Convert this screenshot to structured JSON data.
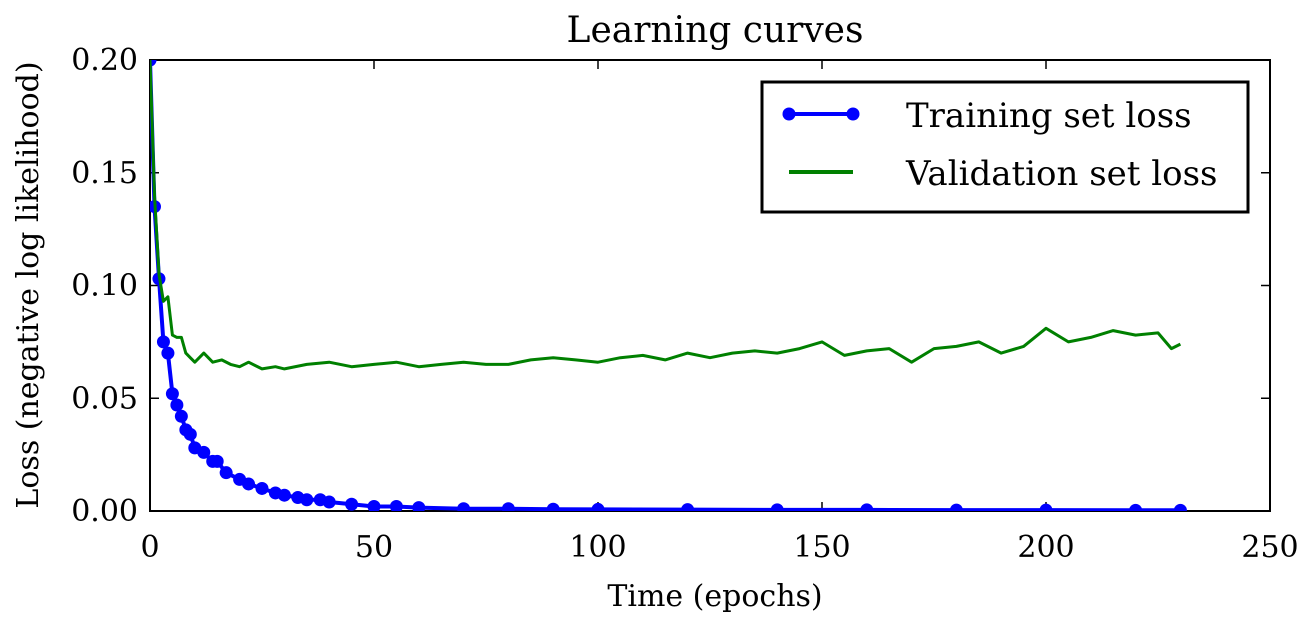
{
  "chart_data": {
    "type": "line",
    "title": "Learning curves",
    "xlabel": "Time (epochs)",
    "ylabel": "Loss (negative log likelihood)",
    "xlim": [
      0,
      250
    ],
    "ylim": [
      0.0,
      0.2
    ],
    "xticks": [
      0,
      50,
      100,
      150,
      200,
      250
    ],
    "xtick_labels": [
      "0",
      "50",
      "100",
      "150",
      "200",
      "250"
    ],
    "yticks": [
      0.0,
      0.05,
      0.1,
      0.15,
      0.2
    ],
    "ytick_labels": [
      "0.00",
      "0.05",
      "0.10",
      "0.15",
      "0.20"
    ],
    "grid": false,
    "legend_position": "top-right",
    "series": [
      {
        "name": "Training set loss",
        "color": "#0000ff",
        "marker": "circle",
        "x": [
          0,
          1,
          2,
          3,
          4,
          5,
          6,
          7,
          8,
          9,
          10,
          12,
          14,
          15,
          17,
          20,
          22,
          25,
          28,
          30,
          33,
          35,
          38,
          40,
          45,
          50,
          55,
          60,
          70,
          80,
          90,
          100,
          120,
          140,
          160,
          180,
          200,
          220,
          230
        ],
        "y": [
          0.2,
          0.135,
          0.103,
          0.075,
          0.07,
          0.052,
          0.047,
          0.042,
          0.036,
          0.034,
          0.028,
          0.026,
          0.022,
          0.022,
          0.017,
          0.014,
          0.012,
          0.01,
          0.008,
          0.007,
          0.006,
          0.005,
          0.005,
          0.004,
          0.003,
          0.002,
          0.002,
          0.0015,
          0.001,
          0.001,
          0.0008,
          0.0007,
          0.0006,
          0.0005,
          0.0005,
          0.0004,
          0.0004,
          0.0003,
          0.0003
        ]
      },
      {
        "name": "Validation set loss",
        "color": "#008000",
        "marker": "none",
        "x": [
          0,
          1,
          2,
          3,
          4,
          5,
          6,
          7,
          8,
          9,
          10,
          12,
          14,
          16,
          18,
          20,
          22,
          25,
          28,
          30,
          35,
          40,
          45,
          50,
          55,
          60,
          65,
          70,
          75,
          80,
          85,
          90,
          95,
          100,
          105,
          110,
          115,
          120,
          125,
          130,
          135,
          140,
          145,
          150,
          155,
          160,
          165,
          170,
          175,
          180,
          185,
          190,
          195,
          200,
          205,
          210,
          215,
          220,
          225,
          228,
          230
        ],
        "y": [
          0.2,
          0.14,
          0.105,
          0.093,
          0.095,
          0.078,
          0.077,
          0.077,
          0.07,
          0.068,
          0.066,
          0.07,
          0.066,
          0.067,
          0.065,
          0.064,
          0.066,
          0.063,
          0.064,
          0.063,
          0.065,
          0.066,
          0.064,
          0.065,
          0.066,
          0.064,
          0.065,
          0.066,
          0.065,
          0.065,
          0.067,
          0.068,
          0.067,
          0.066,
          0.068,
          0.069,
          0.067,
          0.07,
          0.068,
          0.07,
          0.071,
          0.07,
          0.072,
          0.075,
          0.069,
          0.071,
          0.072,
          0.066,
          0.072,
          0.073,
          0.075,
          0.07,
          0.073,
          0.081,
          0.075,
          0.077,
          0.08,
          0.078,
          0.079,
          0.072,
          0.074
        ]
      }
    ]
  }
}
